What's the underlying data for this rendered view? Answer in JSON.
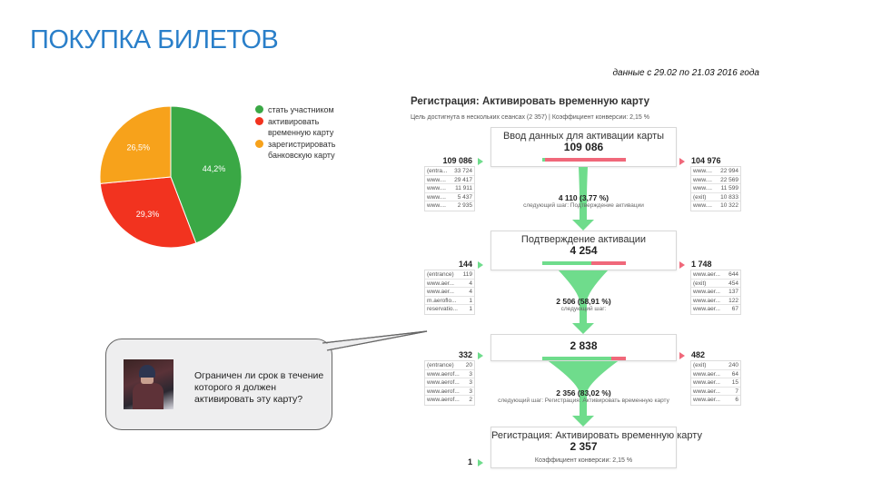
{
  "page": {
    "title": "ПОКУПКА БИЛЕТОВ",
    "date_range": "данные с 29.02 по 21.03 2016 года"
  },
  "pie": {
    "type": "pie",
    "slices": [
      {
        "label": "стать участником",
        "value": 44.2,
        "display": "44,2%",
        "color": "#3aa845"
      },
      {
        "label": "активировать временную карту",
        "value": 29.3,
        "display": "29,3%",
        "color": "#f2331f"
      },
      {
        "label": "зарегистрировать банковскую карту",
        "value": 26.5,
        "display": "26,5%",
        "color": "#f7a21b"
      }
    ]
  },
  "bubble": {
    "question": "Ограничен ли срок в течение которого я должен активировать эту карту?"
  },
  "funnel": {
    "title": "Регистрация: Активировать временную карту",
    "subtitle": "Цель достигнута в нескольких сеансах (2 357) | Коэффициент конверсии: 2,15 %",
    "steps": [
      {
        "name": "Ввод данных для активации карты",
        "value": "109 086",
        "in": "109 086",
        "out": "104 976",
        "next_fraction": 0.0377,
        "left": [
          [
            "(entra...",
            "33 724"
          ],
          [
            "www....",
            "29 417"
          ],
          [
            "www....",
            "11 911"
          ],
          [
            "www....",
            "5 437"
          ],
          [
            "www....",
            "2 935"
          ]
        ],
        "right": [
          [
            "www....",
            "22 994"
          ],
          [
            "www....",
            "22 569"
          ],
          [
            "www....",
            "11 599"
          ],
          [
            "(exit)",
            "10 833"
          ],
          [
            "www....",
            "10 322"
          ]
        ],
        "flow_value": "4 110 (3,77 %)",
        "flow_next": "следующий шаг: Подтверждение активации"
      },
      {
        "name": "Подтверждение активации",
        "value": "4 254",
        "in": "144",
        "out": "1 748",
        "next_fraction": 0.5891,
        "left": [
          [
            "(entrance)",
            "119"
          ],
          [
            "www.aer...",
            "4"
          ],
          [
            "www.aer...",
            "4"
          ],
          [
            "m.aeroflo...",
            "1"
          ],
          [
            "reservatio...",
            "1"
          ]
        ],
        "right": [
          [
            "www.aer...",
            "644"
          ],
          [
            "(exit)",
            "454"
          ],
          [
            "www.aer...",
            "137"
          ],
          [
            "www.aer...",
            "122"
          ],
          [
            "www.aer...",
            "67"
          ]
        ],
        "flow_value": "2 506 (58,91 %)",
        "flow_next": "следующий шаг:"
      },
      {
        "name": "",
        "value": "2 838",
        "in": "332",
        "out": "482",
        "next_fraction": 0.8302,
        "left": [
          [
            "(entrance)",
            "20"
          ],
          [
            "www.aerof...",
            "3"
          ],
          [
            "www.aerof...",
            "3"
          ],
          [
            "www.aerof...",
            "3"
          ],
          [
            "www.aerof...",
            "2"
          ]
        ],
        "right": [
          [
            "(exit)",
            "240"
          ],
          [
            "www.aer...",
            "64"
          ],
          [
            "www.aer...",
            "15"
          ],
          [
            "www.aer...",
            "7"
          ],
          [
            "www.aer...",
            "6"
          ]
        ],
        "flow_value": "2 356 (83,02 %)",
        "flow_next": "следующий шаг: Регистрация: Активировать временную карту"
      },
      {
        "name": "Регистрация: Активировать временную карту",
        "value": "2 357",
        "in": "1",
        "conversion": "Коэффициент конверсии: 2,15 %"
      }
    ]
  }
}
